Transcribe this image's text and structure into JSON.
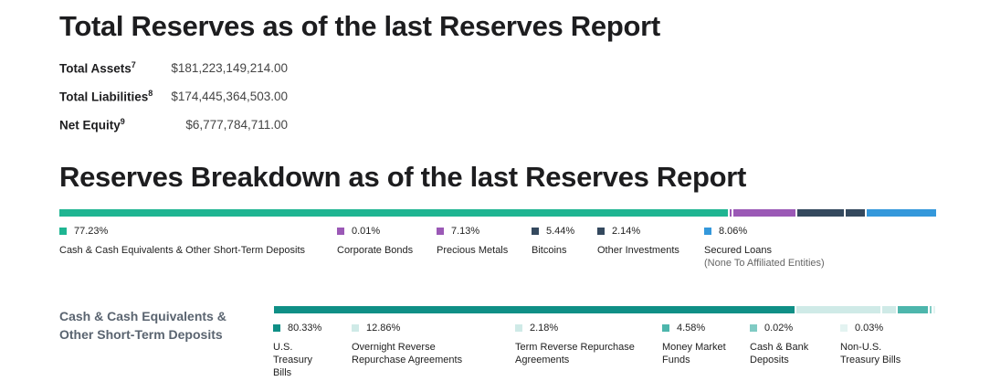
{
  "title_total": "Total Reserves as of the last Reserves Report",
  "title_breakdown": "Reserves Breakdown as of the last Reserves Report",
  "stats": [
    {
      "label": "Total Assets",
      "sup": "7",
      "value": "$181,223,149,214.00"
    },
    {
      "label": "Total Liabilities",
      "sup": "8",
      "value": "$174,445,364,503.00"
    },
    {
      "label": "Net Equity",
      "sup": "9",
      "value": "$6,777,784,711.00"
    }
  ],
  "breakdown": [
    {
      "pct": "77.23%",
      "label": "Cash & Cash Equivalents & Other Short-Term Deposits",
      "sub": "",
      "color": "#1fb592",
      "share": 77.23
    },
    {
      "pct": "0.01%",
      "label": "Corporate Bonds",
      "sub": "",
      "color": "#9b59b6",
      "share": 0.01
    },
    {
      "pct": "7.13%",
      "label": "Precious Metals",
      "sub": "",
      "color": "#9b59b6",
      "share": 7.13
    },
    {
      "pct": "5.44%",
      "label": "Bitcoins",
      "sub": "",
      "color": "#34495e",
      "share": 5.44
    },
    {
      "pct": "2.14%",
      "label": "Other Investments",
      "sub": "",
      "color": "#34495e",
      "share": 2.14
    },
    {
      "pct": "8.06%",
      "label": "Secured Loans",
      "sub": "(None To Affiliated Entities)",
      "color": "#3498db",
      "share": 8.06
    }
  ],
  "cash_heading": "Cash & Cash Equivalents & Other Short-Term Deposits",
  "cash_breakdown": [
    {
      "pct": "80.33%",
      "label": "U.S. Treasury Bills",
      "color": "#0f8f86",
      "share": 80.33
    },
    {
      "pct": "12.86%",
      "label": "Overnight Reverse Repurchase Agreements",
      "color": "#cfeae7",
      "share": 12.86
    },
    {
      "pct": "2.18%",
      "label": "Term Reverse Repurchase Agreements",
      "color": "#cfeae7",
      "share": 2.18
    },
    {
      "pct": "4.58%",
      "label": "Money Market Funds",
      "color": "#4db6ac",
      "share": 4.58
    },
    {
      "pct": "0.02%",
      "label": "Cash & Bank Deposits",
      "color": "#80cbc4",
      "share": 0.02
    },
    {
      "pct": "0.03%",
      "label": "Non-U.S. Treasury Bills",
      "color": "#e3f3f1",
      "share": 0.03
    }
  ]
}
